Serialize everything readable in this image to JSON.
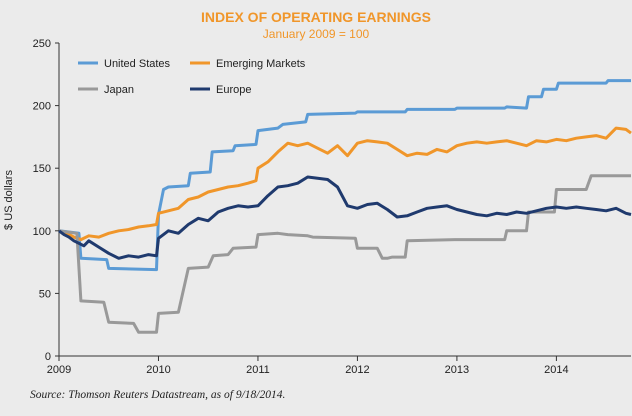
{
  "chart_data": {
    "type": "line",
    "title": "INDEX OF OPERATING EARNINGS",
    "subtitle": "January 2009 = 100",
    "ylabel": "$ US dollars",
    "xlabel": "",
    "ylim": [
      0,
      250
    ],
    "yticks": [
      0,
      50,
      100,
      150,
      200,
      250
    ],
    "xlim": [
      2009.0,
      2014.75
    ],
    "xticks": [
      2009,
      2010,
      2011,
      2012,
      2013,
      2014
    ],
    "xtick_labels": [
      "2009",
      "2010",
      "2011",
      "2012",
      "2013",
      "2014"
    ],
    "grid": false,
    "legend_position": "top-left",
    "source": "Source: Thomson Reuters Datastream, as of 9/18/2014.",
    "series": [
      {
        "name": "United States",
        "color": "#5b9bd5",
        "x": [
          2009.0,
          2009.2,
          2009.22,
          2009.48,
          2009.5,
          2009.98,
          2010.0,
          2010.05,
          2010.1,
          2010.3,
          2010.32,
          2010.52,
          2010.54,
          2010.75,
          2010.77,
          2010.98,
          2011.0,
          2011.2,
          2011.25,
          2011.48,
          2011.5,
          2011.98,
          2012.0,
          2012.48,
          2012.5,
          2012.98,
          2013.0,
          2013.48,
          2013.5,
          2013.7,
          2013.72,
          2013.85,
          2013.87,
          2014.0,
          2014.02,
          2014.5,
          2014.52,
          2014.75
        ],
        "y": [
          100,
          98,
          78,
          77,
          70,
          69,
          113,
          133,
          135,
          136,
          146,
          147,
          163,
          164,
          168,
          169,
          180,
          182,
          185,
          187,
          193,
          194,
          195,
          195,
          197,
          197,
          198,
          198,
          199,
          198,
          207,
          207,
          213,
          213,
          218,
          218,
          220,
          220
        ]
      },
      {
        "name": "Emerging Markets",
        "color": "#f0962a",
        "x": [
          2009.0,
          2009.08,
          2009.15,
          2009.22,
          2009.3,
          2009.4,
          2009.5,
          2009.6,
          2009.7,
          2009.8,
          2009.9,
          2009.98,
          2010.0,
          2010.1,
          2010.2,
          2010.3,
          2010.4,
          2010.5,
          2010.6,
          2010.7,
          2010.8,
          2010.9,
          2010.98,
          2011.0,
          2011.1,
          2011.2,
          2011.3,
          2011.4,
          2011.5,
          2011.6,
          2011.7,
          2011.8,
          2011.9,
          2012.0,
          2012.1,
          2012.2,
          2012.3,
          2012.4,
          2012.5,
          2012.6,
          2012.7,
          2012.8,
          2012.9,
          2013.0,
          2013.1,
          2013.2,
          2013.3,
          2013.4,
          2013.5,
          2013.6,
          2013.7,
          2013.8,
          2013.9,
          2014.0,
          2014.1,
          2014.2,
          2014.3,
          2014.4,
          2014.5,
          2014.6,
          2014.7,
          2014.75
        ],
        "y": [
          100,
          98,
          95,
          93,
          96,
          95,
          98,
          100,
          101,
          103,
          104,
          105,
          114,
          116,
          118,
          125,
          127,
          131,
          133,
          135,
          136,
          138,
          140,
          150,
          155,
          163,
          170,
          168,
          170,
          166,
          162,
          168,
          160,
          170,
          172,
          171,
          170,
          165,
          160,
          162,
          161,
          165,
          163,
          168,
          170,
          171,
          170,
          171,
          172,
          170,
          168,
          172,
          171,
          173,
          172,
          174,
          175,
          176,
          174,
          182,
          181,
          178
        ]
      },
      {
        "name": "Japan",
        "color": "#999999",
        "x": [
          2009.0,
          2009.18,
          2009.22,
          2009.45,
          2009.5,
          2009.75,
          2009.8,
          2009.98,
          2010.0,
          2010.2,
          2010.3,
          2010.5,
          2010.55,
          2010.7,
          2010.75,
          2010.98,
          2011.0,
          2011.2,
          2011.3,
          2011.5,
          2011.55,
          2011.98,
          2012.0,
          2012.2,
          2012.25,
          2012.3,
          2012.35,
          2012.48,
          2012.5,
          2012.98,
          2013.0,
          2013.48,
          2013.5,
          2013.7,
          2013.72,
          2013.98,
          2014.0,
          2014.3,
          2014.35,
          2014.75
        ],
        "y": [
          100,
          98,
          44,
          43,
          27,
          26,
          19,
          19,
          34,
          35,
          70,
          71,
          80,
          81,
          86,
          87,
          97,
          98,
          97,
          96,
          95,
          94,
          86,
          86,
          78,
          78,
          79,
          79,
          92,
          93,
          93,
          93,
          100,
          100,
          115,
          115,
          133,
          133,
          144,
          144
        ]
      },
      {
        "name": "Europe",
        "color": "#1f3a6e",
        "x": [
          2009.0,
          2009.05,
          2009.1,
          2009.15,
          2009.2,
          2009.25,
          2009.3,
          2009.4,
          2009.5,
          2009.6,
          2009.7,
          2009.8,
          2009.9,
          2009.98,
          2010.0,
          2010.1,
          2010.2,
          2010.3,
          2010.4,
          2010.5,
          2010.6,
          2010.7,
          2010.8,
          2010.9,
          2011.0,
          2011.1,
          2011.2,
          2011.3,
          2011.4,
          2011.5,
          2011.6,
          2011.7,
          2011.8,
          2011.9,
          2012.0,
          2012.1,
          2012.2,
          2012.3,
          2012.4,
          2012.5,
          2012.6,
          2012.7,
          2012.8,
          2012.9,
          2013.0,
          2013.1,
          2013.2,
          2013.3,
          2013.4,
          2013.5,
          2013.6,
          2013.7,
          2013.8,
          2013.9,
          2014.0,
          2014.1,
          2014.2,
          2014.3,
          2014.4,
          2014.5,
          2014.6,
          2014.7,
          2014.75
        ],
        "y": [
          100,
          97,
          95,
          92,
          90,
          88,
          92,
          87,
          82,
          78,
          80,
          79,
          81,
          80,
          94,
          100,
          98,
          105,
          110,
          108,
          115,
          118,
          120,
          119,
          120,
          128,
          135,
          136,
          138,
          143,
          142,
          141,
          135,
          120,
          118,
          121,
          122,
          117,
          111,
          112,
          115,
          118,
          119,
          120,
          117,
          115,
          113,
          112,
          114,
          113,
          115,
          114,
          116,
          118,
          119,
          118,
          119,
          118,
          117,
          116,
          118,
          114,
          113
        ]
      }
    ]
  }
}
